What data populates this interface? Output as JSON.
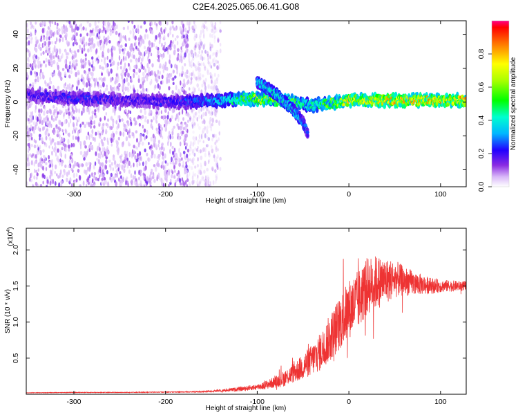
{
  "title": "C2E4.2025.065.06.41.G08",
  "chart_data": [
    {
      "type": "heatmap",
      "title": "C2E4.2025.065.06.41.G08",
      "xlabel": "Height of straight line (km)",
      "ylabel": "Frequency (Hz)",
      "xlim": [
        -352,
        128
      ],
      "ylim": [
        -50,
        48
      ],
      "xticks": [
        -300,
        -200,
        -100,
        0,
        100
      ],
      "yticks": [
        -40,
        -20,
        0,
        20,
        40
      ],
      "grid": false,
      "colorbar": {
        "label": "Normalized spectral amplitude",
        "range": [
          0,
          1
        ],
        "ticks": [
          0.0,
          0.2,
          0.4,
          0.6,
          0.8
        ],
        "tick_labels": [
          "0.0",
          "0.2",
          "0.4",
          "0.6",
          "0.8"
        ],
        "colormap": "rainbow"
      },
      "features": [
        {
          "x": [
            -352,
            -290,
            -230,
            -180,
            -140,
            -100,
            -60,
            -40,
            0,
            50,
            128
          ],
          "y": [
            4,
            2,
            1,
            0,
            1,
            2,
            0,
            -2,
            1,
            1,
            1
          ],
          "peak_amplitude": [
            0.25,
            0.3,
            0.25,
            0.3,
            0.45,
            0.8,
            0.7,
            0.55,
            0.9,
            0.95,
            1.0
          ]
        },
        {
          "x": [
            -100,
            -80,
            -60,
            -50,
            -45
          ],
          "y": [
            12,
            5,
            -5,
            -12,
            -18
          ],
          "peak_amplitude": [
            0.5,
            0.55,
            0.5,
            0.4,
            0.3
          ]
        }
      ],
      "noise_region_x": [
        -352,
        -155
      ]
    },
    {
      "type": "line",
      "xlabel": "Height of straight line (km)",
      "ylabel": "SNR (10 * v/v)",
      "y_scale_label": "(x10",
      "y_scale_exponent": "4",
      "xlim": [
        -352,
        128
      ],
      "ylim": [
        0,
        23000
      ],
      "xticks": [
        -300,
        -200,
        -100,
        0,
        100
      ],
      "yticks": [
        5000,
        10000,
        15000,
        20000
      ],
      "ytick_labels": [
        "0.5",
        "1.0",
        "1.5",
        "2.0"
      ],
      "grid": false,
      "series": [
        {
          "color": "#ee3333",
          "x": [
            -352,
            -300,
            -250,
            -200,
            -160,
            -140,
            -120,
            -100,
            -90,
            -80,
            -70,
            -60,
            -50,
            -40,
            -30,
            -20,
            -10,
            0,
            10,
            20,
            30,
            40,
            50,
            60,
            70,
            80,
            90,
            100,
            110,
            120,
            128
          ],
          "y": [
            200,
            250,
            250,
            300,
            350,
            500,
            700,
            1000,
            1300,
            1700,
            2200,
            3000,
            3800,
            4800,
            6000,
            8000,
            9800,
            11800,
            13000,
            15000,
            15500,
            15700,
            16000,
            15700,
            15400,
            15200,
            15000,
            15000,
            15000,
            15000,
            15000
          ],
          "noise": [
            30,
            40,
            40,
            50,
            80,
            150,
            300,
            400,
            600,
            800,
            1100,
            1400,
            1800,
            2200,
            2700,
            3300,
            3800,
            4100,
            4200,
            4000,
            3800,
            3200,
            2600,
            2100,
            1700,
            1400,
            1100,
            900,
            800,
            700,
            700
          ]
        }
      ]
    }
  ]
}
